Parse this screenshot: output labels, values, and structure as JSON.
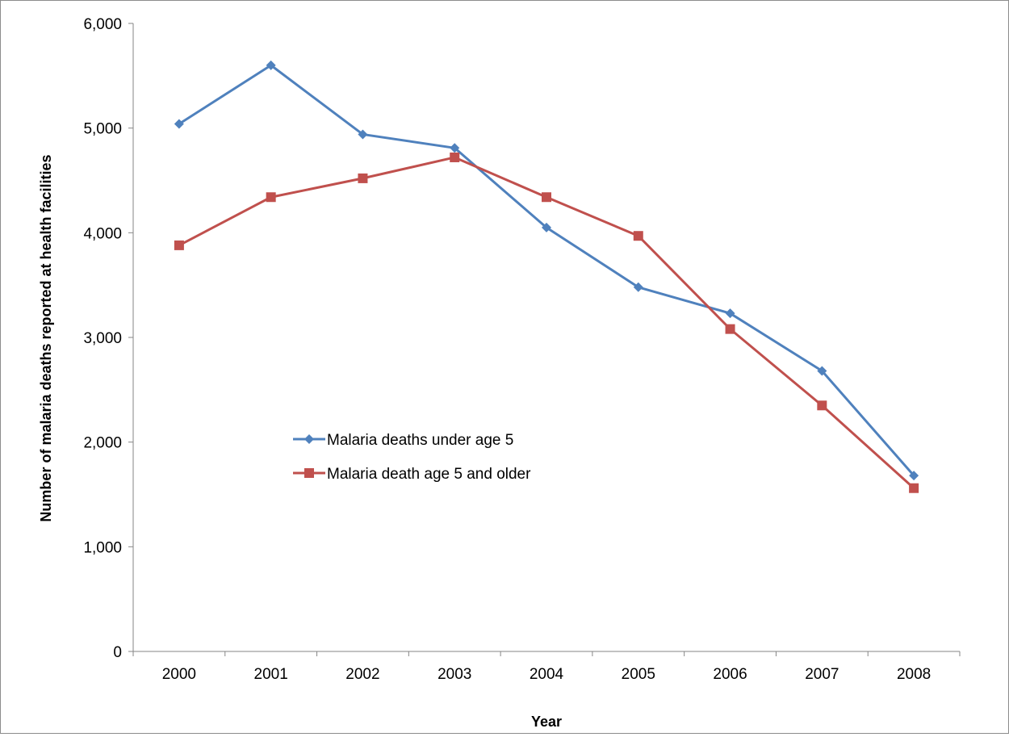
{
  "chart_data": {
    "type": "line",
    "title": "",
    "xlabel": "Year",
    "ylabel": "Number of malaria deaths reported at health facilities",
    "categories": [
      "2000",
      "2001",
      "2002",
      "2003",
      "2004",
      "2005",
      "2006",
      "2007",
      "2008"
    ],
    "ylim": [
      0,
      6000
    ],
    "yticks": [
      0,
      1000,
      2000,
      3000,
      4000,
      5000,
      6000
    ],
    "ytick_labels": [
      "0",
      "1,000",
      "2,000",
      "3,000",
      "4,000",
      "5,000",
      "6,000"
    ],
    "grid": false,
    "legend_position": "center-left inside plot",
    "series": [
      {
        "name": "Malaria deaths under age 5",
        "color": "#4f81bd",
        "marker": "diamond",
        "values": [
          5040,
          5600,
          4940,
          4810,
          4050,
          3480,
          3230,
          2680,
          1680
        ]
      },
      {
        "name": "Malaria death age 5 and older",
        "color": "#c0504d",
        "marker": "square",
        "values": [
          3880,
          4340,
          4520,
          4720,
          4340,
          3970,
          3080,
          2350,
          1560
        ]
      }
    ]
  }
}
